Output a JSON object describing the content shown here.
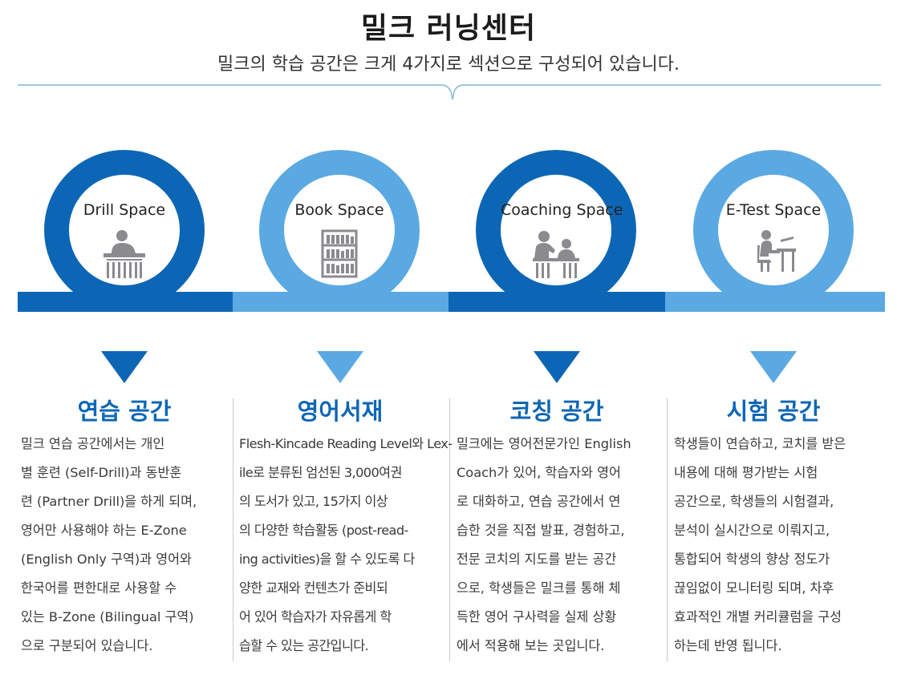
{
  "header": {
    "title": "밀크 러닝센터",
    "subtitle": "밀크의 학습 공간은 크게 4가지로 섹션으로 구성되어 있습니다."
  },
  "colors": {
    "dark_blue": "#0d66b5",
    "light_blue": "#5aa9e2",
    "icon_gray": "#8a8a8f"
  },
  "spaces": [
    {
      "label": "Drill Space",
      "icon": "student-at-desk-icon",
      "tone": "dark"
    },
    {
      "label": "Book Space",
      "icon": "bookshelf-icon",
      "tone": "light"
    },
    {
      "label": "Coaching Space",
      "icon": "coach-and-student-icon",
      "tone": "dark"
    },
    {
      "label": "E-Test Space",
      "icon": "person-at-computer-icon",
      "tone": "light"
    }
  ],
  "sections": [
    {
      "title": "연습 공간",
      "lines": [
        "밀크  연습  공간에서는  개인",
        "별 훈련 (Self-Drill)과 동반훈",
        "련 (Partner Drill)을 하게 되며,",
        "영어만 사용해야 하는 E-Zone",
        "(English Only 구역)과 영어와",
        "한국어를 편한대로 사용할 수",
        "있는 B-Zone (Bilingual 구역)",
        "으로 구분되어 있습니다."
      ]
    },
    {
      "title": "영어서재",
      "lines": [
        "Flesh-Kincade Reading Level와  Lex-",
        "ile로 분류된 엄선된 3,000여권",
        "의 도서가 있고, 15가지 이상",
        "의 다양한  학습활동 (post-read-",
        "ing activities)을 할 수 있도록 다",
        "양한 교재와 컨텐츠가 준비되",
        "어 있어 학습자가 자유롭게 학",
        "습할 수 있는 공간입니다."
      ]
    },
    {
      "title": "코칭 공간",
      "lines": [
        "밀크에는 영어전문가인 English",
        "Coach가 있어, 학습자와 영어",
        "로 대화하고, 연습 공간에서 연",
        "습한 것을 직접 발표, 경험하고,",
        "전문 코치의 지도를 받는 공간",
        "으로, 학생들은 밀크를 통해 체",
        "득한 영어 구사력을 실제 상황",
        "에서 적용해 보는 곳입니다."
      ]
    },
    {
      "title": "시험 공간",
      "lines": [
        "학생들이 연습하고, 코치를 받은",
        "내용에  대해  평가받는  시험",
        "공간으로,  학생들의  시험결과,",
        "분석이  실시간으로  이뤄지고,",
        "통합되어 학생의 향상 정도가",
        "끊임없이 모니터링 되며, 차후",
        "효과적인 개별 커리큘럼을 구성",
        "하는데 반영 됩니다."
      ]
    }
  ]
}
